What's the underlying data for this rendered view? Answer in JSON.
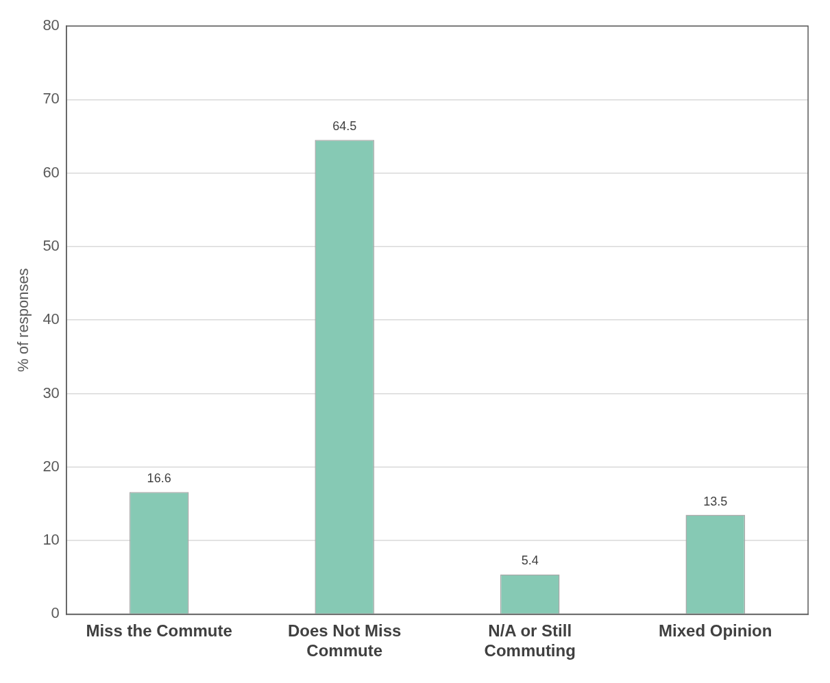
{
  "chart_data": {
    "type": "bar",
    "ylabel": "% of responses",
    "categories": [
      "Miss the Commute",
      "Does Not Miss Commute",
      "N/A or Still Commuting",
      "Mixed Opinion"
    ],
    "values": [
      16.6,
      64.5,
      5.4,
      13.5
    ],
    "color": "#86c9b4",
    "ylim": [
      0,
      80
    ],
    "yticks": [
      0,
      10,
      20,
      30,
      40,
      50,
      60,
      70,
      80
    ],
    "grid": "y",
    "data_labels": true,
    "legend": false
  }
}
